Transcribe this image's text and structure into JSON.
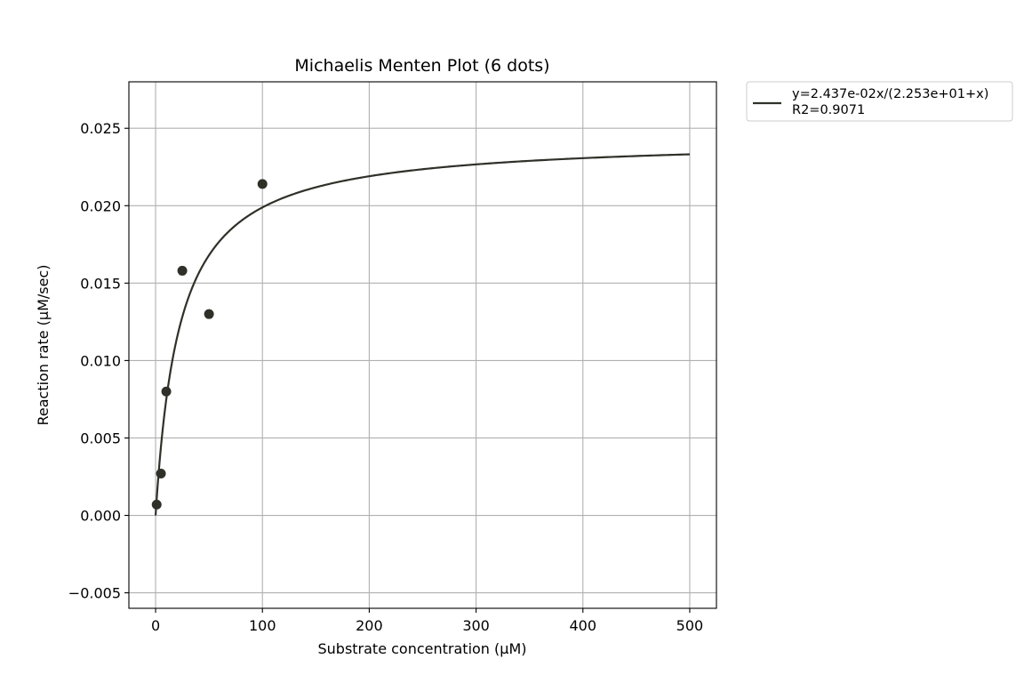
{
  "chart_data": {
    "type": "scatter",
    "title": "Michaelis Menten Plot (6 dots)",
    "xlabel": "Substrate concentration (µM)",
    "ylabel": "Reaction rate (µM/sec)",
    "xlim": [
      -25,
      525
    ],
    "ylim": [
      -0.006,
      0.028
    ],
    "xticks": [
      0,
      100,
      200,
      300,
      400,
      500
    ],
    "xtick_labels": [
      "0",
      "100",
      "200",
      "300",
      "400",
      "500"
    ],
    "yticks": [
      -0.005,
      0,
      0.005,
      0.01,
      0.015,
      0.02,
      0.025
    ],
    "ytick_labels": [
      "−0.005",
      "0.000",
      "0.005",
      "0.010",
      "0.015",
      "0.020",
      "0.025"
    ],
    "grid": true,
    "legend_position": "outside-upper-right",
    "colors": {
      "series": "#2f3129"
    },
    "series": [
      {
        "kind": "points",
        "x": [
          1,
          5,
          10,
          25,
          50,
          100
        ],
        "y": [
          0.0007,
          0.0027,
          0.008,
          0.0158,
          0.013,
          0.0214
        ]
      },
      {
        "kind": "fit-line",
        "name": "y=2.437e-02x/(2.253e+01+x)",
        "name_line2": "R2=0.9071",
        "vmax": 0.02437,
        "km": 22.53,
        "x_range": [
          0,
          500
        ]
      }
    ]
  }
}
